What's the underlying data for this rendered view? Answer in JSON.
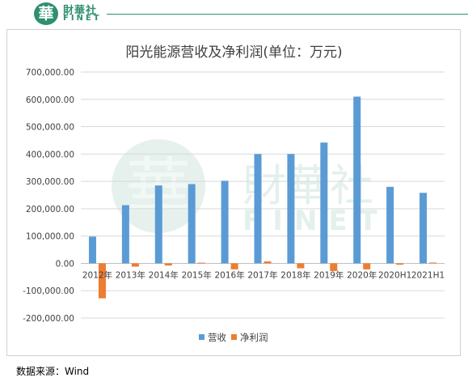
{
  "brand": {
    "badge_char": "華",
    "name_cn": "財華社",
    "name_en": "FINET",
    "watermark_cn": "財華社",
    "watermark_en": "FINET"
  },
  "source_text": "数据来源：Wind",
  "colors": {
    "revenue": "#5b9bd5",
    "net_profit": "#ed7d31",
    "grid": "#d9d9d9",
    "brand": "#2f8f6e"
  },
  "chart_data": {
    "type": "bar",
    "title": "阳光能源营收及净利润(单位：万元)",
    "categories": [
      "2012年",
      "2013年",
      "2014年",
      "2015年",
      "2016年",
      "2017年",
      "2018年",
      "2019年",
      "2020年",
      "2020H1",
      "2021H1"
    ],
    "series": [
      {
        "name": "营收",
        "values": [
          98000,
          213000,
          285000,
          290000,
          302000,
          400000,
          400000,
          442000,
          610000,
          280000,
          258000
        ]
      },
      {
        "name": "净利润",
        "values": [
          -128000,
          -12000,
          -8000,
          2500,
          -22000,
          7000,
          -18000,
          -28000,
          -22000,
          -5000,
          3000
        ]
      }
    ],
    "ylim": [
      -200000,
      700000
    ],
    "yticks": [
      700000,
      600000,
      500000,
      400000,
      300000,
      200000,
      100000,
      0,
      -100000,
      -200000
    ],
    "ytick_labels": [
      "700,000.00",
      "600,000.00",
      "500,000.00",
      "400,000.00",
      "300,000.00",
      "200,000.00",
      "100,000.00",
      "0.00",
      "-100,000.00",
      "-200,000.00"
    ],
    "grid": true,
    "legend": "bottom"
  }
}
